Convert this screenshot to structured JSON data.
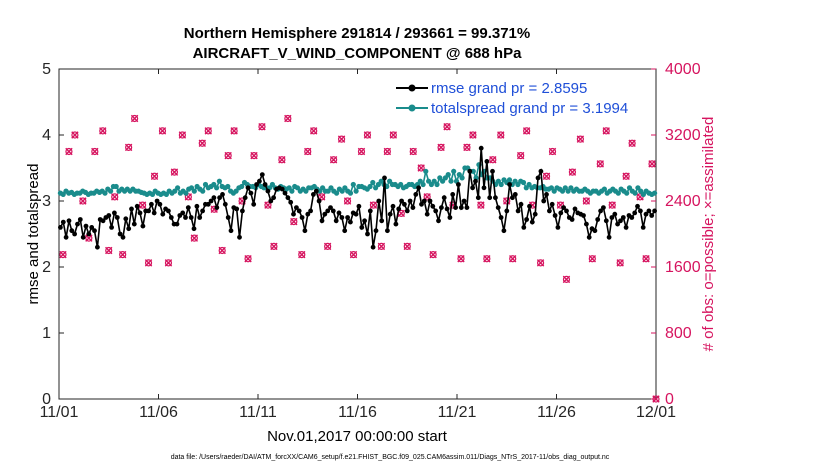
{
  "chart_data": {
    "type": "line",
    "title": [
      "Northern Hemisphere 291814 / 293661 = 99.371%",
      "AIRCRAFT_V_WIND_COMPONENT @ 688 hPa"
    ],
    "xlabel": "Nov.01,2017 00:00:00 start",
    "ylabel": "rmse and totalspread",
    "ylabel_right": "# of obs: o=possible; ×=assimilated",
    "footnote": "data file: /Users/raeder/DAI/ATM_forcXX/CAM6_setup/f.e21.FHIST_BGC.f09_025.CAM6assim.011/Diags_NTrS_2017-11/obs_diag_output.nc",
    "x_ticks": [
      "11/01",
      "11/06",
      "11/11",
      "11/16",
      "11/21",
      "11/26",
      "12/01"
    ],
    "x_range_days": [
      0,
      30
    ],
    "ylim": [
      0,
      5
    ],
    "y_ticks": [
      "0",
      "1",
      "2",
      "3",
      "4",
      "5"
    ],
    "ylim_right": [
      0,
      4000
    ],
    "y_ticks_right": [
      "0",
      "800",
      "1600",
      "2400",
      "3200",
      "4000"
    ],
    "colors": {
      "rmse": "#000000",
      "spread": "#1a8c8c",
      "obs": "#d6145f",
      "legend_text": "#1f4fd8"
    },
    "series": [
      {
        "name": "rmse grand pr = 2.8595",
        "values": [
          2.6,
          2.68,
          2.45,
          2.7,
          2.55,
          2.5,
          2.65,
          2.72,
          2.45,
          2.62,
          2.5,
          2.6,
          2.55,
          2.3,
          2.72,
          2.7,
          2.75,
          2.78,
          2.6,
          2.82,
          2.75,
          2.5,
          2.45,
          2.73,
          2.58,
          2.88,
          2.65,
          2.92,
          2.82,
          2.62,
          2.85,
          2.85,
          2.95,
          2.82,
          3.0,
          2.95,
          2.8,
          2.88,
          2.85,
          2.75,
          2.65,
          2.65,
          2.78,
          2.82,
          2.75,
          2.9,
          2.75,
          2.58,
          2.92,
          2.75,
          2.85,
          2.95,
          2.95,
          3.0,
          3.05,
          2.9,
          3.05,
          3.1,
          2.95,
          2.75,
          2.55,
          2.9,
          2.88,
          2.45,
          2.85,
          3.05,
          3.2,
          3.12,
          2.95,
          3.25,
          3.3,
          3.4,
          3.25,
          3.15,
          3.0,
          3.05,
          3.18,
          3.2,
          3.18,
          3.12,
          3.05,
          2.98,
          2.8,
          2.9,
          2.85,
          2.75,
          2.55,
          2.8,
          2.85,
          3.1,
          3.15,
          3.0,
          2.7,
          2.8,
          2.85,
          2.9,
          2.85,
          2.7,
          2.82,
          2.75,
          2.55,
          2.75,
          2.68,
          2.82,
          2.8,
          2.92,
          2.6,
          2.7,
          2.5,
          2.85,
          2.3,
          2.55,
          3.0,
          2.7,
          3.35,
          2.55,
          2.8,
          2.92,
          2.65,
          2.88,
          3.0,
          2.95,
          2.85,
          3.0,
          2.9,
          3.1,
          3.2,
          2.95,
          3.0,
          2.8,
          3.0,
          2.92,
          2.85,
          2.7,
          2.9,
          3.05,
          2.88,
          2.75,
          3.1,
          2.9,
          3.25,
          2.9,
          3.0,
          2.9,
          3.45,
          3.2,
          3.3,
          3.05,
          3.8,
          3.2,
          3.6,
          3.05,
          3.45,
          3.05,
          2.9,
          2.75,
          2.55,
          2.85,
          3.25,
          3.05,
          3.1,
          2.85,
          2.95,
          2.6,
          2.72,
          2.92,
          2.68,
          2.8,
          3.35,
          3.45,
          3.0,
          3.1,
          2.85,
          2.95,
          2.78,
          2.6,
          2.82,
          2.9,
          2.85,
          2.75,
          2.72,
          2.88,
          2.82,
          2.8,
          2.78,
          2.65,
          2.45,
          2.58,
          2.55,
          2.72,
          2.85,
          2.9,
          2.7,
          2.45,
          2.75,
          2.8,
          2.65,
          2.7,
          2.75,
          2.6,
          2.78,
          2.75,
          2.82,
          2.92,
          2.85,
          2.6,
          2.8,
          2.85,
          2.78,
          2.85
        ]
      },
      {
        "name": "totalspread grand pr = 3.1994",
        "values": [
          3.12,
          3.1,
          3.15,
          3.12,
          3.13,
          3.1,
          3.12,
          3.12,
          3.15,
          3.13,
          3.1,
          3.12,
          3.12,
          3.15,
          3.13,
          3.15,
          3.12,
          3.18,
          3.15,
          3.22,
          3.22,
          3.15,
          3.18,
          3.15,
          3.18,
          3.15,
          3.18,
          3.15,
          3.15,
          3.13,
          3.12,
          3.1,
          3.12,
          3.1,
          3.15,
          3.12,
          3.1,
          3.12,
          3.1,
          3.15,
          3.12,
          3.15,
          3.2,
          3.12,
          3.15,
          3.12,
          3.18,
          3.2,
          3.15,
          3.22,
          3.18,
          3.15,
          3.25,
          3.2,
          3.22,
          3.25,
          3.2,
          3.3,
          3.22,
          3.2,
          3.22,
          3.15,
          3.12,
          3.15,
          3.2,
          3.22,
          3.28,
          3.25,
          3.22,
          3.22,
          3.2,
          3.25,
          3.22,
          3.2,
          3.2,
          3.2,
          3.25,
          3.2,
          3.18,
          3.22,
          3.2,
          3.18,
          3.2,
          3.15,
          3.22,
          3.2,
          3.15,
          3.18,
          3.15,
          3.2,
          3.2,
          3.22,
          3.18,
          3.15,
          3.2,
          3.15,
          3.15,
          3.2,
          3.15,
          3.12,
          3.18,
          3.15,
          3.2,
          3.15,
          3.12,
          3.25,
          3.15,
          3.22,
          3.22,
          3.2,
          3.18,
          3.22,
          3.28,
          3.2,
          3.25,
          3.3,
          3.25,
          3.22,
          3.3,
          3.25,
          3.25,
          3.22,
          3.25,
          3.2,
          3.22,
          3.25,
          3.25,
          3.22,
          3.25,
          3.3,
          3.25,
          3.45,
          3.3,
          3.25,
          3.3,
          3.25,
          3.35,
          3.3,
          3.35,
          3.4,
          3.3,
          3.45,
          3.3,
          3.4,
          3.35,
          3.5,
          3.5,
          3.45,
          3.45,
          3.35,
          3.55,
          3.4,
          3.45,
          3.35,
          3.35,
          3.3,
          3.25,
          3.3,
          3.25,
          3.32,
          3.28,
          3.32,
          3.25,
          3.3,
          3.25,
          3.3,
          3.28,
          3.2,
          3.25,
          3.2,
          3.22,
          3.2,
          3.2,
          3.22,
          3.18,
          3.18,
          3.2,
          3.15,
          3.2,
          3.18,
          3.15,
          3.2,
          3.15,
          3.2,
          3.15,
          3.18,
          3.15,
          3.15,
          3.18,
          3.15,
          3.12,
          3.15,
          3.15,
          3.12,
          3.15,
          3.18,
          3.12,
          3.15,
          3.18,
          3.15,
          3.12,
          3.18,
          3.15,
          3.12,
          3.2,
          3.15,
          3.12,
          3.2,
          3.15,
          3.1,
          3.15,
          3.12,
          3.1,
          3.12
        ]
      }
    ],
    "obs_counts": [
      [
        0.2,
        1750
      ],
      [
        0.5,
        3000
      ],
      [
        0.8,
        3200
      ],
      [
        1.2,
        2400
      ],
      [
        1.5,
        1950
      ],
      [
        1.8,
        3000
      ],
      [
        2.2,
        3250
      ],
      [
        2.5,
        1800
      ],
      [
        2.8,
        2450
      ],
      [
        3.2,
        1750
      ],
      [
        3.5,
        3050
      ],
      [
        3.8,
        3400
      ],
      [
        4.2,
        2350
      ],
      [
        4.5,
        1650
      ],
      [
        4.8,
        2700
      ],
      [
        5.2,
        3250
      ],
      [
        5.5,
        1650
      ],
      [
        5.8,
        2750
      ],
      [
        6.2,
        3200
      ],
      [
        6.5,
        2450
      ],
      [
        6.8,
        1950
      ],
      [
        7.2,
        3100
      ],
      [
        7.5,
        3250
      ],
      [
        7.8,
        2300
      ],
      [
        8.2,
        1800
      ],
      [
        8.5,
        2950
      ],
      [
        8.8,
        3250
      ],
      [
        9.2,
        2400
      ],
      [
        9.5,
        1700
      ],
      [
        9.8,
        2950
      ],
      [
        10.2,
        3300
      ],
      [
        10.5,
        2350
      ],
      [
        10.8,
        1850
      ],
      [
        11.2,
        2900
      ],
      [
        11.5,
        3400
      ],
      [
        11.8,
        2150
      ],
      [
        12.2,
        1750
      ],
      [
        12.5,
        3000
      ],
      [
        12.8,
        3250
      ],
      [
        13.2,
        2450
      ],
      [
        13.5,
        1850
      ],
      [
        13.8,
        2900
      ],
      [
        14.2,
        3150
      ],
      [
        14.5,
        2400
      ],
      [
        14.8,
        1750
      ],
      [
        15.2,
        3000
      ],
      [
        15.5,
        3200
      ],
      [
        15.8,
        2350
      ],
      [
        16.2,
        1850
      ],
      [
        16.5,
        3000
      ],
      [
        16.8,
        3200
      ],
      [
        17.2,
        2250
      ],
      [
        17.5,
        1850
      ],
      [
        17.8,
        3000
      ],
      [
        18.2,
        2800
      ],
      [
        18.5,
        2450
      ],
      [
        18.8,
        1750
      ],
      [
        19.2,
        3050
      ],
      [
        19.5,
        3300
      ],
      [
        19.8,
        2350
      ],
      [
        20.2,
        1700
      ],
      [
        20.5,
        3050
      ],
      [
        20.8,
        3200
      ],
      [
        21.2,
        2350
      ],
      [
        21.5,
        1700
      ],
      [
        21.8,
        2900
      ],
      [
        22.2,
        3200
      ],
      [
        22.5,
        2400
      ],
      [
        22.8,
        1700
      ],
      [
        23.2,
        2950
      ],
      [
        23.5,
        3250
      ],
      [
        23.8,
        2350
      ],
      [
        24.2,
        1650
      ],
      [
        24.5,
        2700
      ],
      [
        24.8,
        3000
      ],
      [
        25.2,
        2350
      ],
      [
        25.5,
        1450
      ],
      [
        25.8,
        2750
      ],
      [
        26.2,
        3150
      ],
      [
        26.5,
        2400
      ],
      [
        26.8,
        1700
      ],
      [
        27.2,
        2850
      ],
      [
        27.5,
        3250
      ],
      [
        27.8,
        2350
      ],
      [
        28.2,
        1650
      ],
      [
        28.5,
        2700
      ],
      [
        28.8,
        3100
      ],
      [
        29.2,
        2450
      ],
      [
        29.5,
        1700
      ],
      [
        29.8,
        2850
      ],
      [
        30.0,
        0
      ]
    ]
  }
}
